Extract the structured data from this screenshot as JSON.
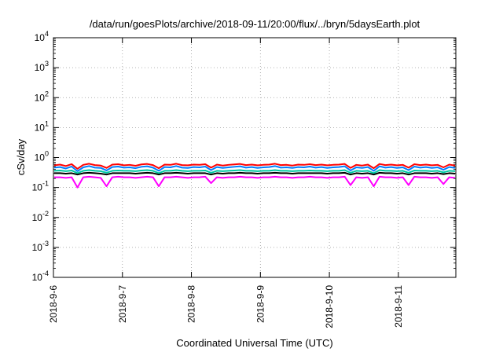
{
  "chart_data": {
    "type": "line",
    "title": "/data/run/goesPlots/archive/2018-09-11/20:00/flux/../bryn/5daysEarth.plot",
    "xlabel": "Coordinated Universal Time (UTC)",
    "ylabel": "cSv/day",
    "yscale": "log",
    "ylim": [
      0.0001,
      10000
    ],
    "xlim": [
      "2018-09-06T00:00",
      "2018-09-11T20:00"
    ],
    "grid": true,
    "y_ticks": [
      {
        "base": "10",
        "exp": "-4"
      },
      {
        "base": "10",
        "exp": "-3"
      },
      {
        "base": "10",
        "exp": "-2"
      },
      {
        "base": "10",
        "exp": "-1"
      },
      {
        "base": "10",
        "exp": "0"
      },
      {
        "base": "10",
        "exp": "1"
      },
      {
        "base": "10",
        "exp": "2"
      },
      {
        "base": "10",
        "exp": "3"
      },
      {
        "base": "10",
        "exp": "4"
      }
    ],
    "x_ticks": [
      "2018-9-6",
      "2018-9-7",
      "2018-9-8",
      "2018-9-9",
      "2018-9-10",
      "2018-9-11"
    ],
    "series": [
      {
        "color": "#ff00ff",
        "values": [
          0.22,
          0.22,
          0.21,
          0.22,
          0.1,
          0.22,
          0.23,
          0.22,
          0.21,
          0.11,
          0.22,
          0.23,
          0.22,
          0.22,
          0.21,
          0.22,
          0.23,
          0.22,
          0.11,
          0.22,
          0.22,
          0.23,
          0.22,
          0.21,
          0.22,
          0.22,
          0.23,
          0.14,
          0.22,
          0.21,
          0.22,
          0.22,
          0.23,
          0.22,
          0.22,
          0.21,
          0.22,
          0.22,
          0.23,
          0.22,
          0.22,
          0.21,
          0.22,
          0.22,
          0.23,
          0.22,
          0.22,
          0.21,
          0.22,
          0.22,
          0.23,
          0.12,
          0.22,
          0.21,
          0.22,
          0.11,
          0.23,
          0.22,
          0.22,
          0.21,
          0.22,
          0.12,
          0.23,
          0.22,
          0.22,
          0.21,
          0.22,
          0.13,
          0.22,
          0.21
        ]
      },
      {
        "color": "#ff0000",
        "values": [
          0.55,
          0.58,
          0.52,
          0.6,
          0.42,
          0.57,
          0.62,
          0.56,
          0.54,
          0.45,
          0.58,
          0.6,
          0.55,
          0.57,
          0.53,
          0.59,
          0.61,
          0.56,
          0.44,
          0.58,
          0.57,
          0.62,
          0.56,
          0.55,
          0.58,
          0.57,
          0.6,
          0.46,
          0.58,
          0.54,
          0.57,
          0.59,
          0.61,
          0.56,
          0.58,
          0.55,
          0.57,
          0.58,
          0.62,
          0.56,
          0.57,
          0.54,
          0.58,
          0.57,
          0.6,
          0.56,
          0.58,
          0.55,
          0.57,
          0.58,
          0.61,
          0.45,
          0.57,
          0.54,
          0.58,
          0.44,
          0.61,
          0.56,
          0.58,
          0.55,
          0.57,
          0.46,
          0.6,
          0.56,
          0.58,
          0.55,
          0.57,
          0.47,
          0.58,
          0.54
        ]
      },
      {
        "color": "#0080ff",
        "values": [
          0.46,
          0.48,
          0.43,
          0.5,
          0.35,
          0.47,
          0.52,
          0.46,
          0.45,
          0.37,
          0.48,
          0.5,
          0.46,
          0.47,
          0.44,
          0.49,
          0.51,
          0.46,
          0.36,
          0.48,
          0.47,
          0.52,
          0.46,
          0.45,
          0.48,
          0.47,
          0.5,
          0.38,
          0.48,
          0.45,
          0.47,
          0.49,
          0.51,
          0.46,
          0.48,
          0.45,
          0.47,
          0.48,
          0.52,
          0.46,
          0.47,
          0.45,
          0.48,
          0.47,
          0.5,
          0.46,
          0.48,
          0.45,
          0.47,
          0.48,
          0.51,
          0.37,
          0.47,
          0.45,
          0.48,
          0.36,
          0.51,
          0.46,
          0.48,
          0.45,
          0.47,
          0.38,
          0.5,
          0.46,
          0.48,
          0.45,
          0.47,
          0.39,
          0.48,
          0.45
        ]
      },
      {
        "color": "#00c8a0",
        "values": [
          0.36,
          0.37,
          0.35,
          0.37,
          0.3,
          0.36,
          0.38,
          0.36,
          0.35,
          0.31,
          0.36,
          0.37,
          0.36,
          0.36,
          0.35,
          0.37,
          0.38,
          0.36,
          0.3,
          0.36,
          0.36,
          0.38,
          0.36,
          0.35,
          0.36,
          0.36,
          0.37,
          0.31,
          0.36,
          0.35,
          0.36,
          0.37,
          0.38,
          0.36,
          0.36,
          0.35,
          0.36,
          0.36,
          0.38,
          0.36,
          0.36,
          0.35,
          0.36,
          0.36,
          0.37,
          0.36,
          0.36,
          0.35,
          0.36,
          0.36,
          0.38,
          0.31,
          0.36,
          0.35,
          0.36,
          0.3,
          0.38,
          0.36,
          0.36,
          0.35,
          0.36,
          0.31,
          0.37,
          0.36,
          0.36,
          0.35,
          0.36,
          0.32,
          0.36,
          0.35
        ]
      },
      {
        "color": "#000000",
        "values": [
          0.3,
          0.3,
          0.29,
          0.3,
          0.27,
          0.3,
          0.31,
          0.3,
          0.29,
          0.27,
          0.3,
          0.3,
          0.3,
          0.3,
          0.29,
          0.3,
          0.31,
          0.3,
          0.27,
          0.3,
          0.3,
          0.31,
          0.3,
          0.29,
          0.3,
          0.3,
          0.3,
          0.27,
          0.3,
          0.29,
          0.3,
          0.3,
          0.31,
          0.3,
          0.3,
          0.29,
          0.3,
          0.3,
          0.31,
          0.3,
          0.3,
          0.29,
          0.3,
          0.3,
          0.3,
          0.3,
          0.3,
          0.29,
          0.3,
          0.3,
          0.31,
          0.27,
          0.3,
          0.29,
          0.3,
          0.27,
          0.31,
          0.3,
          0.3,
          0.29,
          0.3,
          0.27,
          0.3,
          0.3,
          0.3,
          0.29,
          0.3,
          0.28,
          0.3,
          0.29
        ]
      }
    ]
  }
}
